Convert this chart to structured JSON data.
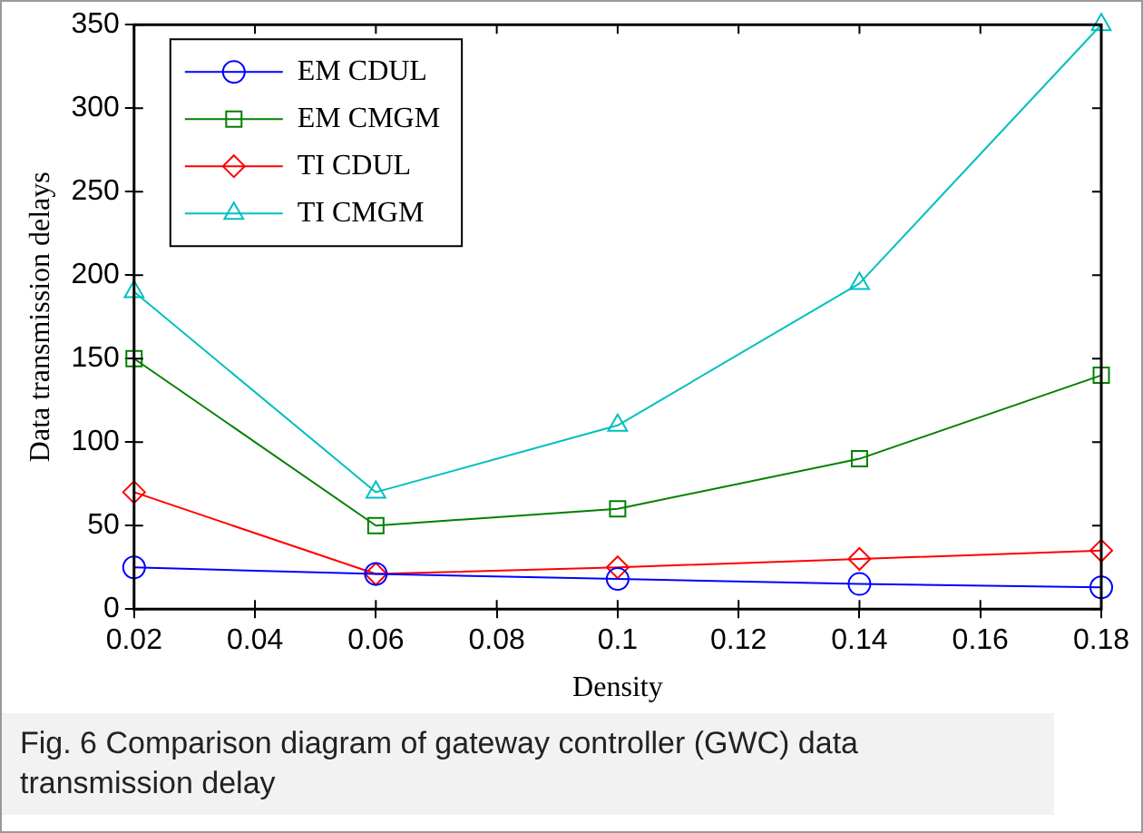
{
  "chart_data": {
    "type": "line",
    "xlabel": "Density",
    "ylabel": "Data transmission delays",
    "x": [
      0.02,
      0.06,
      0.1,
      0.14,
      0.18
    ],
    "series": [
      {
        "name": "EM CDUL",
        "color": "#0000ff",
        "marker": "circle",
        "values": [
          25,
          21,
          18,
          15,
          13
        ]
      },
      {
        "name": "EM CMGM",
        "color": "#008000",
        "marker": "square",
        "values": [
          150,
          50,
          60,
          90,
          140
        ]
      },
      {
        "name": "TI CDUL",
        "color": "#ff0000",
        "marker": "diamond",
        "values": [
          70,
          21,
          25,
          30,
          35
        ]
      },
      {
        "name": "TI CMGM",
        "color": "#00bfbf",
        "marker": "triangle",
        "values": [
          190,
          70,
          110,
          195,
          350
        ]
      }
    ],
    "xlim": [
      0.02,
      0.18
    ],
    "xticks": [
      0.02,
      0.04,
      0.06,
      0.08,
      0.1,
      0.12,
      0.14,
      0.16,
      0.18
    ],
    "ylim": [
      0,
      350
    ],
    "yticks": [
      0,
      50,
      100,
      150,
      200,
      250,
      300,
      350
    ],
    "grid": false,
    "legend": "top left",
    "line_style": "solid",
    "annotations": [
      "Fig. 6 Comparison diagram of gateway controller (GWC) data transmission delay"
    ]
  }
}
